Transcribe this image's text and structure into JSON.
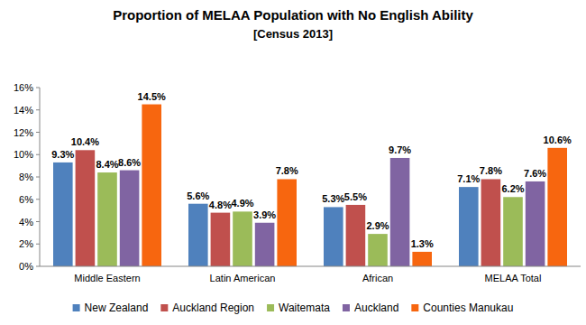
{
  "chart_data": {
    "type": "bar",
    "title": "Proportion of MELAA Population with No English Ability",
    "subtitle": "[Census 2013]",
    "categories": [
      "Middle Eastern",
      "Latin American",
      "African",
      "MELAA Total"
    ],
    "series": [
      {
        "name": "New Zealand",
        "color": "#4f81bd",
        "values": [
          9.3,
          5.6,
          5.3,
          7.1
        ],
        "value_labels": [
          "9.3%",
          "5.6%",
          "5.3%",
          "7.1%"
        ]
      },
      {
        "name": "Auckland Region",
        "color": "#c0504d",
        "values": [
          10.4,
          4.8,
          5.5,
          7.8
        ],
        "value_labels": [
          "10.4%",
          "4.8%",
          "5.5%",
          "7.8%"
        ]
      },
      {
        "name": "Waitemata",
        "color": "#9bbb59",
        "values": [
          8.4,
          4.9,
          2.9,
          6.2
        ],
        "value_labels": [
          "8.4%",
          "4.9%",
          "2.9%",
          "6.2%"
        ]
      },
      {
        "name": "Auckland",
        "color": "#8064a2",
        "values": [
          8.6,
          3.9,
          9.7,
          7.6
        ],
        "value_labels": [
          "8.6%",
          "3.9%",
          "9.7%",
          "7.6%"
        ]
      },
      {
        "name": "Counties Manukau",
        "color": "#f7660f",
        "values": [
          14.5,
          7.8,
          1.3,
          10.6
        ],
        "value_labels": [
          "14.5%",
          "7.8%",
          "1.3%",
          "10.6%"
        ]
      }
    ],
    "ylim": [
      0,
      16
    ],
    "yticks": [
      {
        "value": 0,
        "label": "0%"
      },
      {
        "value": 2,
        "label": "2%"
      },
      {
        "value": 4,
        "label": "4%"
      },
      {
        "value": 6,
        "label": "6%"
      },
      {
        "value": 8,
        "label": "8%"
      },
      {
        "value": 10,
        "label": "10%"
      },
      {
        "value": 12,
        "label": "12%"
      },
      {
        "value": 14,
        "label": "14%"
      },
      {
        "value": 16,
        "label": "16%"
      }
    ],
    "grid": false,
    "data_labels": true,
    "legend": "bottom"
  }
}
